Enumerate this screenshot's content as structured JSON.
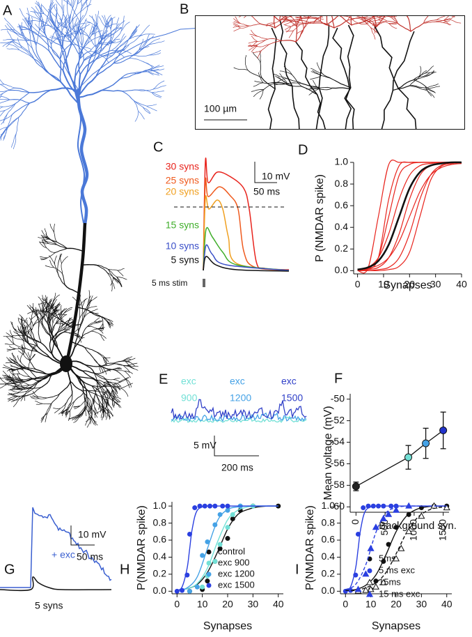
{
  "panel_labels": [
    "A",
    "B",
    "C",
    "D",
    "E",
    "F",
    "G",
    "H",
    "I"
  ],
  "panel_b": {
    "scale_bar": "100 µm"
  },
  "panel_c": {
    "traces": [
      {
        "label": "30 syns",
        "color": "#e8231c"
      },
      {
        "label": "25 syns",
        "color": "#ef5a1e"
      },
      {
        "label": "20 syns",
        "color": "#f0a020"
      },
      {
        "label": "15 syns",
        "color": "#3fae2a"
      },
      {
        "label": "10 syns",
        "color": "#3a4fc8"
      },
      {
        "label": "5 syns",
        "color": "#111111"
      }
    ],
    "stim": "5 ms stim",
    "scale_y": "10 mV",
    "scale_x": "50 ms"
  },
  "panel_e": {
    "traces": [
      {
        "label": [
          "exc",
          "900"
        ],
        "color": "#72e0d6"
      },
      {
        "label": [
          "exc",
          "1200"
        ],
        "color": "#45a2e6"
      },
      {
        "label": [
          "exc",
          "1500"
        ],
        "color": "#3040c8"
      }
    ],
    "scale_y": "5 mV",
    "scale_x": "200 ms"
  },
  "panel_g": {
    "scale_y": "10 mV",
    "scale_x": "50 ms",
    "traces": [
      {
        "label": "+ exc",
        "color": "#3a5fd0"
      },
      {
        "label": "5 syns",
        "color": "#111111"
      }
    ]
  },
  "chart_data": [
    {
      "type": "line",
      "ylabel": "P (NMDAR spike)",
      "xlabel": "Synapses",
      "xlim": [
        -1.5,
        40
      ],
      "ylim": [
        -0.03,
        1.0
      ],
      "xticks": [
        0,
        10,
        20,
        30,
        40
      ],
      "yticks": [
        {
          "value": 0,
          "label": "0.0"
        },
        {
          "value": 0.2,
          "label": "0.2"
        },
        {
          "value": 0.4,
          "label": "0.4"
        },
        {
          "value": 0.6,
          "label": "0.6"
        },
        {
          "value": 0.8,
          "label": "0.8"
        },
        {
          "value": 1,
          "label": "1.0"
        }
      ],
      "x": [
        0,
        4,
        8,
        12,
        16,
        20,
        24,
        28,
        32,
        36,
        40
      ],
      "series": [
        {
          "color": "#e8231c",
          "values": [
            0,
            0.02,
            0.5,
            0.98,
            1,
            1,
            1,
            1,
            1,
            1,
            1
          ]
        },
        {
          "color": "#e8231c",
          "values": [
            0,
            0.02,
            0.12,
            0.5,
            0.88,
            0.98,
            1,
            1,
            1,
            1,
            1
          ]
        },
        {
          "color": "#e8231c",
          "values": [
            0.01,
            0.03,
            0.12,
            0.34,
            0.66,
            0.88,
            0.97,
            0.99,
            1,
            1,
            1
          ]
        },
        {
          "color": "#e8231c",
          "values": [
            0,
            0.01,
            0.03,
            0.12,
            0.34,
            0.66,
            0.88,
            0.97,
            0.99,
            1,
            1
          ]
        },
        {
          "color": "#e8231c",
          "values": [
            0.01,
            0.02,
            0.05,
            0.12,
            0.27,
            0.5,
            0.73,
            0.88,
            0.95,
            0.98,
            0.99
          ]
        },
        {
          "color": "#e8231c",
          "values": [
            0,
            0,
            0.01,
            0.03,
            0.12,
            0.34,
            0.66,
            0.88,
            0.97,
            0.99,
            1
          ]
        },
        {
          "color": "#e8231c",
          "values": [
            0,
            0,
            0,
            0.01,
            0.04,
            0.17,
            0.5,
            0.83,
            0.96,
            0.99,
            1
          ]
        },
        {
          "color": "#e8231c",
          "values": [
            0,
            0.01,
            0.12,
            0.66,
            0.97,
            1,
            1,
            1,
            1,
            1,
            1
          ]
        },
        {
          "color": "#111111",
          "values": [
            0.01,
            0.03,
            0.09,
            0.24,
            0.5,
            0.76,
            0.91,
            0.97,
            0.99,
            1,
            1
          ]
        }
      ]
    },
    {
      "type": "errorbar",
      "ylabel": "Mean voltage (mV)",
      "xlim": [
        -100,
        1600
      ],
      "ylim": [
        -60.5,
        -49.5
      ],
      "xticks": [
        0,
        500,
        1000,
        1500
      ],
      "yticks": [
        -60,
        -58,
        -56,
        -54,
        -52,
        -50
      ],
      "x": [
        0,
        900,
        1200,
        1500
      ],
      "values": [
        -58.1,
        -55.4,
        -54.1,
        -52.9
      ],
      "errors": [
        0.4,
        1.1,
        1.4,
        1.7
      ],
      "point_colors": [
        "#222222",
        "#72e0d6",
        "#45a2e6",
        "#2233cc"
      ],
      "color": "#111111"
    },
    {
      "type": "scatter",
      "ylabel": "P(NMDAR spike)",
      "xlabel": "Synapses",
      "xlim": [
        -2,
        42
      ],
      "ylim": [
        -0.03,
        1.05
      ],
      "xticks": [
        0,
        10,
        20,
        30,
        40
      ],
      "yticks": [
        {
          "value": 0,
          "label": "0.0"
        },
        {
          "value": 0.2,
          "label": "0.2"
        },
        {
          "value": 0.4,
          "label": "0.4"
        },
        {
          "value": 0.6,
          "label": "0.6"
        },
        {
          "value": 0.8,
          "label": "0.8"
        },
        {
          "value": 1,
          "label": "1.0"
        }
      ],
      "series": [
        {
          "name": "control",
          "color": "#111111",
          "marker": "circle",
          "dash": false,
          "x": [
            5,
            10,
            12,
            15,
            17,
            20,
            22,
            25,
            30,
            40
          ],
          "values": [
            0,
            0.02,
            0.12,
            0.35,
            0.5,
            0.62,
            0.85,
            0.95,
            1,
            1
          ],
          "fit_x": [
            0,
            4,
            8,
            12,
            16,
            20,
            24,
            28,
            32,
            36,
            40
          ],
          "fit": [
            0.01,
            0.03,
            0.08,
            0.22,
            0.46,
            0.73,
            0.9,
            0.96,
            0.99,
            1,
            1
          ]
        },
        {
          "name": "exc 900",
          "color": "#72e0d6",
          "marker": "circle",
          "dash": false,
          "x": [
            10,
            12,
            15,
            17,
            20,
            22,
            25,
            30
          ],
          "values": [
            0.05,
            0.18,
            0.35,
            0.55,
            0.75,
            0.9,
            1,
            1
          ],
          "fit_x": [
            0,
            4,
            8,
            12,
            16,
            20,
            24,
            28,
            32,
            36,
            40
          ],
          "fit": [
            0.01,
            0.03,
            0.09,
            0.27,
            0.58,
            0.84,
            0.95,
            0.99,
            1,
            1,
            1
          ]
        },
        {
          "name": "exc 1200",
          "color": "#45a2e6",
          "marker": "circle",
          "dash": false,
          "x": [
            5,
            8,
            10,
            12,
            15,
            17,
            20,
            25
          ],
          "values": [
            0,
            0.05,
            0.42,
            0.58,
            0.78,
            0.9,
            0.95,
            1
          ],
          "fit_x": [
            0,
            4,
            8,
            12,
            16,
            20,
            24,
            28,
            32,
            36,
            40
          ],
          "fit": [
            0.01,
            0.04,
            0.17,
            0.5,
            0.83,
            0.96,
            0.99,
            1,
            1,
            1,
            1
          ]
        },
        {
          "name": "exc 1500",
          "color": "#2a3fe0",
          "marker": "circle",
          "dash": false,
          "x": [
            0,
            2,
            4,
            5,
            7,
            9,
            11,
            13,
            15,
            18,
            20
          ],
          "values": [
            0,
            0.01,
            0.19,
            0.67,
            0.98,
            1,
            1,
            1,
            1,
            1,
            1
          ],
          "fit_x": [
            0,
            2,
            4,
            5,
            6,
            8,
            12,
            16,
            20,
            30,
            40
          ],
          "fit": [
            0.01,
            0.05,
            0.27,
            0.5,
            0.73,
            0.95,
            1,
            1,
            1,
            1,
            1
          ]
        }
      ]
    },
    {
      "type": "scatter",
      "title": "Background syn.",
      "ylabel": "P(NMDAR spike)",
      "xlabel": "Synapses",
      "xlim": [
        -2,
        42
      ],
      "ylim": [
        -0.03,
        1.05
      ],
      "xticks": [
        0,
        10,
        20,
        30,
        40
      ],
      "yticks": [
        {
          "value": 0,
          "label": "0.0"
        },
        {
          "value": 0.2,
          "label": "0.2"
        },
        {
          "value": 0.4,
          "label": "0.4"
        },
        {
          "value": 0.6,
          "label": "0.6"
        },
        {
          "value": 0.8,
          "label": "0.8"
        },
        {
          "value": 1,
          "label": "1.0"
        }
      ],
      "series": [
        {
          "name": "5ms",
          "color": "#111111",
          "marker": "circle",
          "dash": false,
          "x": [
            5,
            10,
            12,
            15,
            17,
            20,
            25,
            30,
            35,
            40
          ],
          "values": [
            0,
            0.02,
            0.12,
            0.35,
            0.55,
            0.75,
            0.9,
            0.98,
            1,
            1
          ],
          "fit_x": [
            0,
            4,
            8,
            12,
            16,
            20,
            24,
            28,
            32,
            36,
            40
          ],
          "fit": [
            0.01,
            0.02,
            0.07,
            0.19,
            0.43,
            0.7,
            0.88,
            0.96,
            0.99,
            1,
            1
          ]
        },
        {
          "name": "5 ms exc",
          "color": "#2a3fe0",
          "marker": "circle",
          "dash": false,
          "x": [
            0,
            2,
            4,
            5,
            7,
            9,
            11,
            13,
            15,
            18,
            20
          ],
          "values": [
            0,
            0.01,
            0.19,
            0.67,
            0.98,
            1,
            1,
            1,
            1,
            1,
            1
          ],
          "fit_x": [
            0,
            2,
            4,
            5,
            6,
            8,
            12,
            16,
            20,
            30,
            40
          ],
          "fit": [
            0.01,
            0.05,
            0.27,
            0.5,
            0.73,
            0.95,
            1,
            1,
            1,
            1,
            1
          ]
        },
        {
          "name": "15ms",
          "color": "#111111",
          "marker": "triangle-open",
          "dash": true,
          "x": [
            5,
            8,
            10,
            12,
            15,
            20,
            22,
            25,
            30,
            35,
            40
          ],
          "values": [
            0,
            0.01,
            0.02,
            0.05,
            0.1,
            0.38,
            0.5,
            0.7,
            0.88,
            1,
            0.98
          ],
          "fit_x": [
            0,
            4,
            8,
            12,
            16,
            20,
            24,
            28,
            32,
            36,
            40
          ],
          "fit": [
            0.01,
            0.01,
            0.04,
            0.1,
            0.22,
            0.44,
            0.68,
            0.85,
            0.94,
            0.98,
            0.99
          ]
        },
        {
          "name": "15 ms exc",
          "color": "#2a3fe0",
          "marker": "triangle",
          "dash": true,
          "x": [
            5,
            8,
            10,
            12,
            15,
            17,
            20,
            25
          ],
          "values": [
            0.02,
            0.2,
            0.5,
            0.75,
            0.85,
            0.9,
            0.95,
            1
          ],
          "fit_x": [
            0,
            4,
            8,
            12,
            16,
            20,
            24,
            28,
            32,
            36,
            40
          ],
          "fit": [
            0.02,
            0.08,
            0.31,
            0.69,
            0.92,
            0.98,
            1,
            1,
            1,
            1,
            1
          ]
        }
      ]
    }
  ]
}
